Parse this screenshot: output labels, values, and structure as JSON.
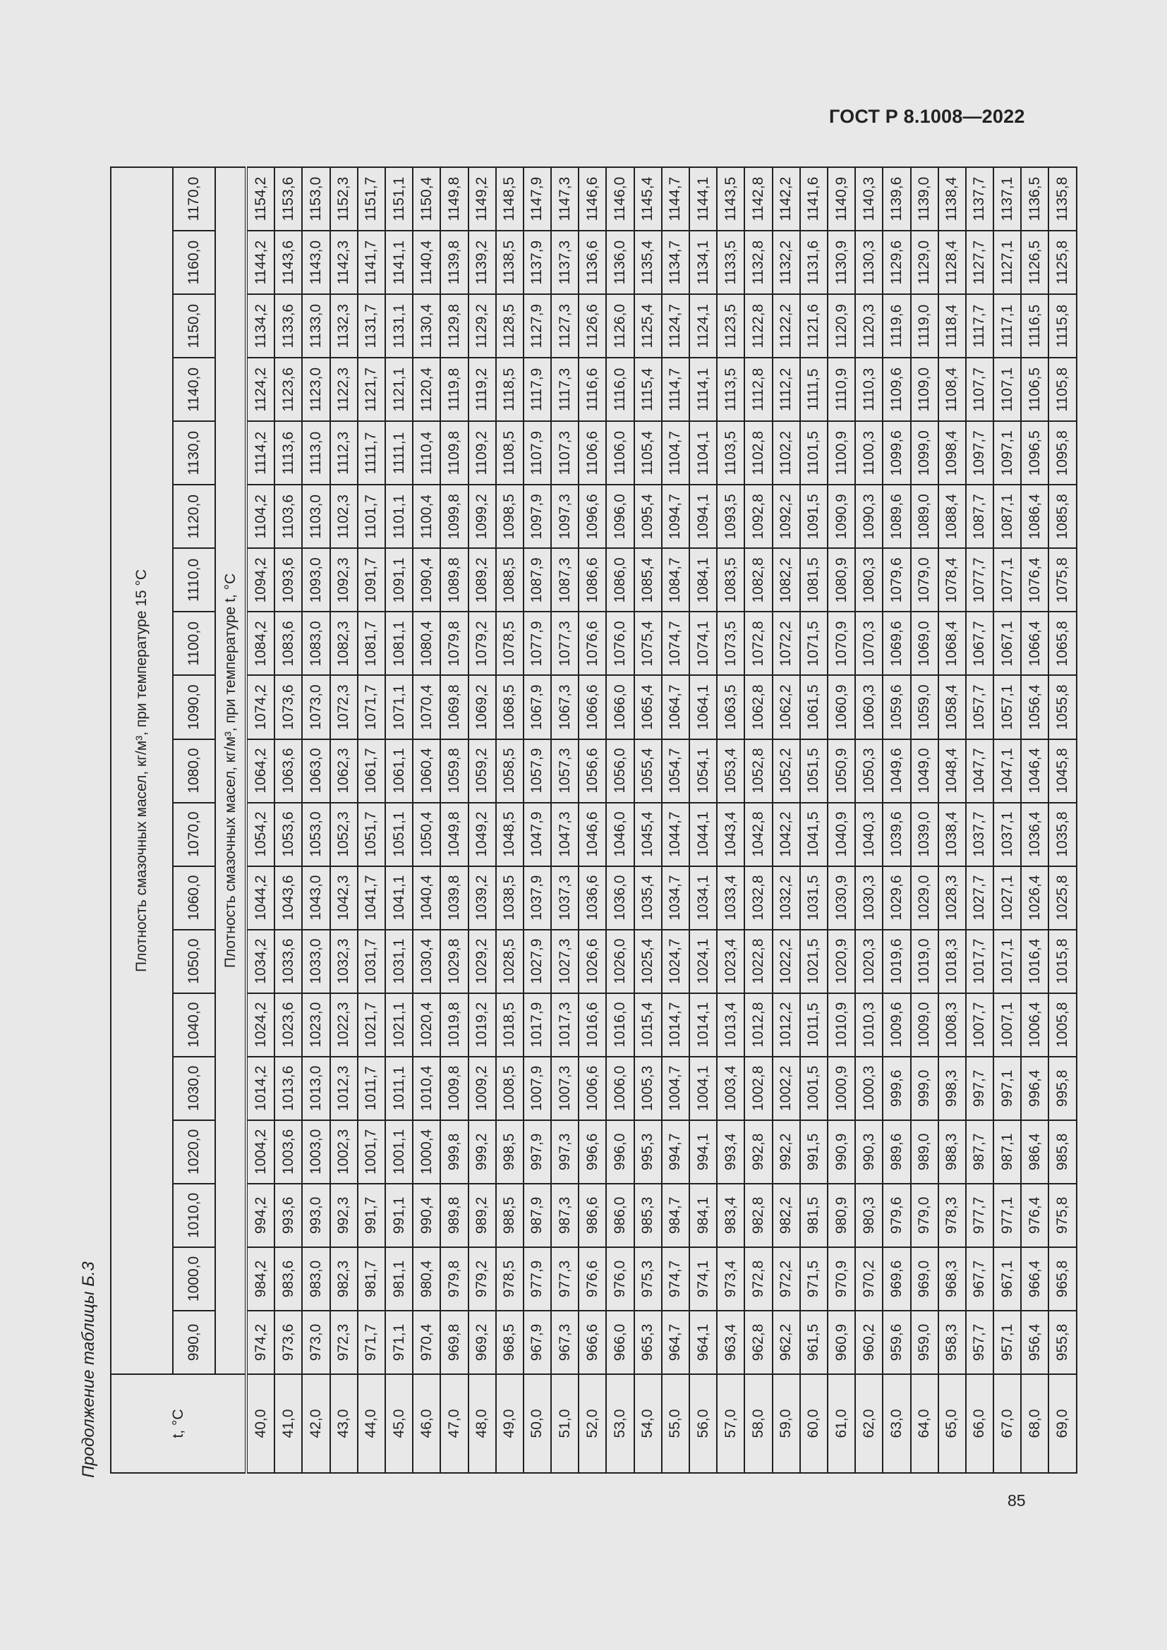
{
  "header": {
    "standard": "ГОСТ Р 8.1008—2022"
  },
  "caption": "Продолжение таблицы Б.3",
  "page_number": "85",
  "table": {
    "t_header": "t, °C",
    "group_header_15": "Плотность смазочных масел, кг/м³, при температуре 15 °C",
    "group_header_t": "Плотность смазочных масел, кг/м³, при температуре t, °C",
    "columns": [
      "990,0",
      "1000,0",
      "1010,0",
      "1020,0",
      "1030,0",
      "1040,0",
      "1050,0",
      "1060,0",
      "1070,0",
      "1080,0",
      "1090,0",
      "1100,0",
      "1110,0",
      "1120,0",
      "1130,0",
      "1140,0",
      "1150,0",
      "1160,0",
      "1170,0"
    ],
    "rows": [
      {
        "t": "40,0",
        "v": [
          "974,2",
          "984,2",
          "994,2",
          "1004,2",
          "1014,2",
          "1024,2",
          "1034,2",
          "1044,2",
          "1054,2",
          "1064,2",
          "1074,2",
          "1084,2",
          "1094,2",
          "1104,2",
          "1114,2",
          "1124,2",
          "1134,2",
          "1144,2",
          "1154,2"
        ]
      },
      {
        "t": "41,0",
        "v": [
          "973,6",
          "983,6",
          "993,6",
          "1003,6",
          "1013,6",
          "1023,6",
          "1033,6",
          "1043,6",
          "1053,6",
          "1063,6",
          "1073,6",
          "1083,6",
          "1093,6",
          "1103,6",
          "1113,6",
          "1123,6",
          "1133,6",
          "1143,6",
          "1153,6"
        ]
      },
      {
        "t": "42,0",
        "v": [
          "973,0",
          "983,0",
          "993,0",
          "1003,0",
          "1013,0",
          "1023,0",
          "1033,0",
          "1043,0",
          "1053,0",
          "1063,0",
          "1073,0",
          "1083,0",
          "1093,0",
          "1103,0",
          "1113,0",
          "1123,0",
          "1133,0",
          "1143,0",
          "1153,0"
        ]
      },
      {
        "t": "43,0",
        "v": [
          "972,3",
          "982,3",
          "992,3",
          "1002,3",
          "1012,3",
          "1022,3",
          "1032,3",
          "1042,3",
          "1052,3",
          "1062,3",
          "1072,3",
          "1082,3",
          "1092,3",
          "1102,3",
          "1112,3",
          "1122,3",
          "1132,3",
          "1142,3",
          "1152,3"
        ]
      },
      {
        "t": "44,0",
        "v": [
          "971,7",
          "981,7",
          "991,7",
          "1001,7",
          "1011,7",
          "1021,7",
          "1031,7",
          "1041,7",
          "1051,7",
          "1061,7",
          "1071,7",
          "1081,7",
          "1091,7",
          "1101,7",
          "1111,7",
          "1121,7",
          "1131,7",
          "1141,7",
          "1151,7"
        ]
      },
      {
        "t": "45,0",
        "v": [
          "971,1",
          "981,1",
          "991,1",
          "1001,1",
          "1011,1",
          "1021,1",
          "1031,1",
          "1041,1",
          "1051,1",
          "1061,1",
          "1071,1",
          "1081,1",
          "1091,1",
          "1101,1",
          "1111,1",
          "1121,1",
          "1131,1",
          "1141,1",
          "1151,1"
        ]
      },
      {
        "t": "46,0",
        "v": [
          "970,4",
          "980,4",
          "990,4",
          "1000,4",
          "1010,4",
          "1020,4",
          "1030,4",
          "1040,4",
          "1050,4",
          "1060,4",
          "1070,4",
          "1080,4",
          "1090,4",
          "1100,4",
          "1110,4",
          "1120,4",
          "1130,4",
          "1140,4",
          "1150,4"
        ]
      },
      {
        "t": "47,0",
        "v": [
          "969,8",
          "979,8",
          "989,8",
          "999,8",
          "1009,8",
          "1019,8",
          "1029,8",
          "1039,8",
          "1049,8",
          "1059,8",
          "1069,8",
          "1079,8",
          "1089,8",
          "1099,8",
          "1109,8",
          "1119,8",
          "1129,8",
          "1139,8",
          "1149,8"
        ]
      },
      {
        "t": "48,0",
        "v": [
          "969,2",
          "979,2",
          "989,2",
          "999,2",
          "1009,2",
          "1019,2",
          "1029,2",
          "1039,2",
          "1049,2",
          "1059,2",
          "1069,2",
          "1079,2",
          "1089,2",
          "1099,2",
          "1109,2",
          "1119,2",
          "1129,2",
          "1139,2",
          "1149,2"
        ]
      },
      {
        "t": "49,0",
        "v": [
          "968,5",
          "978,5",
          "988,5",
          "998,5",
          "1008,5",
          "1018,5",
          "1028,5",
          "1038,5",
          "1048,5",
          "1058,5",
          "1068,5",
          "1078,5",
          "1088,5",
          "1098,5",
          "1108,5",
          "1118,5",
          "1128,5",
          "1138,5",
          "1148,5"
        ]
      },
      {
        "t": "50,0",
        "v": [
          "967,9",
          "977,9",
          "987,9",
          "997,9",
          "1007,9",
          "1017,9",
          "1027,9",
          "1037,9",
          "1047,9",
          "1057,9",
          "1067,9",
          "1077,9",
          "1087,9",
          "1097,9",
          "1107,9",
          "1117,9",
          "1127,9",
          "1137,9",
          "1147,9"
        ]
      },
      {
        "t": "51,0",
        "v": [
          "967,3",
          "977,3",
          "987,3",
          "997,3",
          "1007,3",
          "1017,3",
          "1027,3",
          "1037,3",
          "1047,3",
          "1057,3",
          "1067,3",
          "1077,3",
          "1087,3",
          "1097,3",
          "1107,3",
          "1117,3",
          "1127,3",
          "1137,3",
          "1147,3"
        ]
      },
      {
        "t": "52,0",
        "v": [
          "966,6",
          "976,6",
          "986,6",
          "996,6",
          "1006,6",
          "1016,6",
          "1026,6",
          "1036,6",
          "1046,6",
          "1056,6",
          "1066,6",
          "1076,6",
          "1086,6",
          "1096,6",
          "1106,6",
          "1116,6",
          "1126,6",
          "1136,6",
          "1146,6"
        ]
      },
      {
        "t": "53,0",
        "v": [
          "966,0",
          "976,0",
          "986,0",
          "996,0",
          "1006,0",
          "1016,0",
          "1026,0",
          "1036,0",
          "1046,0",
          "1056,0",
          "1066,0",
          "1076,0",
          "1086,0",
          "1096,0",
          "1106,0",
          "1116,0",
          "1126,0",
          "1136,0",
          "1146,0"
        ]
      },
      {
        "t": "54,0",
        "v": [
          "965,3",
          "975,3",
          "985,3",
          "995,3",
          "1005,3",
          "1015,4",
          "1025,4",
          "1035,4",
          "1045,4",
          "1055,4",
          "1065,4",
          "1075,4",
          "1085,4",
          "1095,4",
          "1105,4",
          "1115,4",
          "1125,4",
          "1135,4",
          "1145,4"
        ]
      },
      {
        "t": "55,0",
        "v": [
          "964,7",
          "974,7",
          "984,7",
          "994,7",
          "1004,7",
          "1014,7",
          "1024,7",
          "1034,7",
          "1044,7",
          "1054,7",
          "1064,7",
          "1074,7",
          "1084,7",
          "1094,7",
          "1104,7",
          "1114,7",
          "1124,7",
          "1134,7",
          "1144,7"
        ]
      },
      {
        "t": "56,0",
        "v": [
          "964,1",
          "974,1",
          "984,1",
          "994,1",
          "1004,1",
          "1014,1",
          "1024,1",
          "1034,1",
          "1044,1",
          "1054,1",
          "1064,1",
          "1074,1",
          "1084,1",
          "1094,1",
          "1104,1",
          "1114,1",
          "1124,1",
          "1134,1",
          "1144,1"
        ]
      },
      {
        "t": "57,0",
        "v": [
          "963,4",
          "973,4",
          "983,4",
          "993,4",
          "1003,4",
          "1013,4",
          "1023,4",
          "1033,4",
          "1043,4",
          "1053,4",
          "1063,5",
          "1073,5",
          "1083,5",
          "1093,5",
          "1103,5",
          "1113,5",
          "1123,5",
          "1133,5",
          "1143,5"
        ]
      },
      {
        "t": "58,0",
        "v": [
          "962,8",
          "972,8",
          "982,8",
          "992,8",
          "1002,8",
          "1012,8",
          "1022,8",
          "1032,8",
          "1042,8",
          "1052,8",
          "1062,8",
          "1072,8",
          "1082,8",
          "1092,8",
          "1102,8",
          "1112,8",
          "1122,8",
          "1132,8",
          "1142,8"
        ]
      },
      {
        "t": "59,0",
        "v": [
          "962,2",
          "972,2",
          "982,2",
          "992,2",
          "1002,2",
          "1012,2",
          "1022,2",
          "1032,2",
          "1042,2",
          "1052,2",
          "1062,2",
          "1072,2",
          "1082,2",
          "1092,2",
          "1102,2",
          "1112,2",
          "1122,2",
          "1132,2",
          "1142,2"
        ]
      },
      {
        "t": "60,0",
        "v": [
          "961,5",
          "971,5",
          "981,5",
          "991,5",
          "1001,5",
          "1011,5",
          "1021,5",
          "1031,5",
          "1041,5",
          "1051,5",
          "1061,5",
          "1071,5",
          "1081,5",
          "1091,5",
          "1101,5",
          "1111,5",
          "1121,6",
          "1131,6",
          "1141,6"
        ]
      },
      {
        "t": "61,0",
        "v": [
          "960,9",
          "970,9",
          "980,9",
          "990,9",
          "1000,9",
          "1010,9",
          "1020,9",
          "1030,9",
          "1040,9",
          "1050,9",
          "1060,9",
          "1070,9",
          "1080,9",
          "1090,9",
          "1100,9",
          "1110,9",
          "1120,9",
          "1130,9",
          "1140,9"
        ]
      },
      {
        "t": "62,0",
        "v": [
          "960,2",
          "970,2",
          "980,3",
          "990,3",
          "1000,3",
          "1010,3",
          "1020,3",
          "1030,3",
          "1040,3",
          "1050,3",
          "1060,3",
          "1070,3",
          "1080,3",
          "1090,3",
          "1100,3",
          "1110,3",
          "1120,3",
          "1130,3",
          "1140,3"
        ]
      },
      {
        "t": "63,0",
        "v": [
          "959,6",
          "969,6",
          "979,6",
          "989,6",
          "999,6",
          "1009,6",
          "1019,6",
          "1029,6",
          "1039,6",
          "1049,6",
          "1059,6",
          "1069,6",
          "1079,6",
          "1089,6",
          "1099,6",
          "1109,6",
          "1119,6",
          "1129,6",
          "1139,6"
        ]
      },
      {
        "t": "64,0",
        "v": [
          "959,0",
          "969,0",
          "979,0",
          "989,0",
          "999,0",
          "1009,0",
          "1019,0",
          "1029,0",
          "1039,0",
          "1049,0",
          "1059,0",
          "1069,0",
          "1079,0",
          "1089,0",
          "1099,0",
          "1109,0",
          "1119,0",
          "1129,0",
          "1139,0"
        ]
      },
      {
        "t": "65,0",
        "v": [
          "958,3",
          "968,3",
          "978,3",
          "988,3",
          "998,3",
          "1008,3",
          "1018,3",
          "1028,3",
          "1038,4",
          "1048,4",
          "1058,4",
          "1068,4",
          "1078,4",
          "1088,4",
          "1098,4",
          "1108,4",
          "1118,4",
          "1128,4",
          "1138,4"
        ]
      },
      {
        "t": "66,0",
        "v": [
          "957,7",
          "967,7",
          "977,7",
          "987,7",
          "997,7",
          "1007,7",
          "1017,7",
          "1027,7",
          "1037,7",
          "1047,7",
          "1057,7",
          "1067,7",
          "1077,7",
          "1087,7",
          "1097,7",
          "1107,7",
          "1117,7",
          "1127,7",
          "1137,7"
        ]
      },
      {
        "t": "67,0",
        "v": [
          "957,1",
          "967,1",
          "977,1",
          "987,1",
          "997,1",
          "1007,1",
          "1017,1",
          "1027,1",
          "1037,1",
          "1047,1",
          "1057,1",
          "1067,1",
          "1077,1",
          "1087,1",
          "1097,1",
          "1107,1",
          "1117,1",
          "1127,1",
          "1137,1"
        ]
      },
      {
        "t": "68,0",
        "v": [
          "956,4",
          "966,4",
          "976,4",
          "986,4",
          "996,4",
          "1006,4",
          "1016,4",
          "1026,4",
          "1036,4",
          "1046,4",
          "1056,4",
          "1066,4",
          "1076,4",
          "1086,4",
          "1096,5",
          "1106,5",
          "1116,5",
          "1126,5",
          "1136,5"
        ]
      },
      {
        "t": "69,0",
        "v": [
          "955,8",
          "965,8",
          "975,8",
          "985,8",
          "995,8",
          "1005,8",
          "1015,8",
          "1025,8",
          "1035,8",
          "1045,8",
          "1055,8",
          "1065,8",
          "1075,8",
          "1085,8",
          "1095,8",
          "1105,8",
          "1115,8",
          "1125,8",
          "1135,8"
        ]
      }
    ]
  }
}
